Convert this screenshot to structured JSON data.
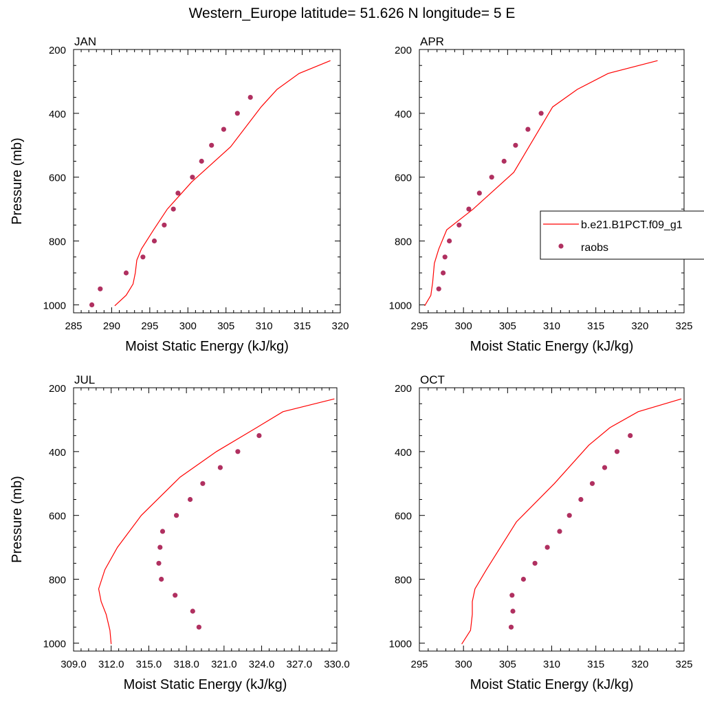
{
  "title": "Western_Europe  latitude= 51.626 N longitude= 5 E",
  "colors": {
    "model": "#ff0000",
    "obs": "#b03060"
  },
  "legend": {
    "placement": "right of APR panel, overlapping",
    "model_label": "b.e21.B1PCT.f09_g1",
    "obs_label": "raobs"
  },
  "chart_data": [
    {
      "type": "line",
      "panel_label": "JAN",
      "xlabel": "Moist Static Energy (kJ/kg)",
      "ylabel": "Pressure (mb)",
      "xlim": [
        285,
        320
      ],
      "ylim": [
        1025,
        200
      ],
      "xticks": [
        "285",
        "290",
        "295",
        "300",
        "305",
        "310",
        "315",
        "320"
      ],
      "yticks": [
        "200",
        "400",
        "600",
        "800",
        "1000"
      ],
      "series": [
        {
          "name": "b.e21.B1PCT.f09_g1",
          "kind": "line",
          "x": [
            290.4,
            291.9,
            292.8,
            293.1,
            293.3,
            293.9,
            295.5,
            297.3,
            300.5,
            305.6,
            309.6,
            311.7,
            314.6,
            318.7
          ],
          "y": [
            1003,
            970,
            935,
            900,
            860,
            825,
            765,
            700,
            615,
            505,
            380,
            325,
            275,
            235
          ]
        },
        {
          "name": "raobs",
          "kind": "scatter",
          "x": [
            287.4,
            288.5,
            291.9,
            294.1,
            295.6,
            296.9,
            298.1,
            298.7,
            300.6,
            301.8,
            303.1,
            304.7,
            306.5,
            308.2
          ],
          "y": [
            1000,
            950,
            900,
            850,
            800,
            750,
            700,
            650,
            600,
            550,
            500,
            450,
            400,
            350
          ]
        }
      ]
    },
    {
      "type": "line",
      "panel_label": "APR",
      "xlabel": "Moist Static Energy (kJ/kg)",
      "ylabel": "",
      "xlim": [
        295,
        325
      ],
      "ylim": [
        1025,
        200
      ],
      "xticks": [
        "295",
        "300",
        "305",
        "310",
        "315",
        "320",
        "325"
      ],
      "yticks": [
        "200",
        "400",
        "600",
        "800",
        "1000"
      ],
      "series": [
        {
          "name": "b.e21.B1PCT.f09_g1",
          "kind": "line",
          "x": [
            295.6,
            296.3,
            296.5,
            296.7,
            297.2,
            298.1,
            301.1,
            305.7,
            310.1,
            312.9,
            316.4,
            322.0
          ],
          "y": [
            1003,
            970,
            930,
            870,
            825,
            765,
            700,
            585,
            380,
            325,
            275,
            235
          ]
        },
        {
          "name": "raobs",
          "kind": "scatter",
          "x": [
            297.2,
            297.7,
            297.9,
            298.4,
            299.5,
            300.6,
            301.8,
            303.2,
            304.6,
            305.9,
            307.3,
            308.8
          ],
          "y": [
            950,
            900,
            850,
            800,
            750,
            700,
            650,
            600,
            550,
            500,
            450,
            400
          ]
        }
      ]
    },
    {
      "type": "line",
      "panel_label": "JUL",
      "xlabel": "Moist Static Energy (kJ/kg)",
      "ylabel": "Pressure (mb)",
      "xlim": [
        309,
        330
      ],
      "ylim": [
        1025,
        200
      ],
      "xticks": [
        "309.0",
        "312.0",
        "315.0",
        "318.0",
        "321.0",
        "324.0",
        "327.0",
        "330.0"
      ],
      "yticks": [
        "200",
        "400",
        "600",
        "800",
        "1000"
      ],
      "series": [
        {
          "name": "b.e21.B1PCT.f09_g1",
          "kind": "line",
          "x": [
            312.0,
            311.9,
            311.6,
            311.2,
            311.0,
            311.5,
            312.5,
            314.4,
            317.5,
            320.4,
            323.6,
            325.7,
            329.8
          ],
          "y": [
            1003,
            960,
            910,
            870,
            830,
            770,
            700,
            600,
            480,
            400,
            325,
            275,
            235
          ]
        },
        {
          "name": "raobs",
          "kind": "scatter",
          "x": [
            319.0,
            318.5,
            317.1,
            316.0,
            315.8,
            315.9,
            316.1,
            317.2,
            318.3,
            319.3,
            320.7,
            322.1,
            323.8
          ],
          "y": [
            950,
            900,
            850,
            800,
            750,
            700,
            650,
            600,
            550,
            500,
            450,
            400,
            350
          ]
        }
      ]
    },
    {
      "type": "line",
      "panel_label": "OCT",
      "xlabel": "Moist Static Energy (kJ/kg)",
      "ylabel": "",
      "xlim": [
        295,
        325
      ],
      "ylim": [
        1025,
        200
      ],
      "xticks": [
        "295",
        "300",
        "305",
        "310",
        "315",
        "320",
        "325"
      ],
      "yticks": [
        "200",
        "400",
        "600",
        "800",
        "1000"
      ],
      "series": [
        {
          "name": "b.e21.B1PCT.f09_g1",
          "kind": "line",
          "x": [
            299.8,
            300.8,
            301.0,
            301.0,
            301.3,
            302.6,
            306.0,
            310.3,
            314.2,
            316.6,
            319.8,
            324.7
          ],
          "y": [
            1003,
            960,
            910,
            870,
            830,
            770,
            620,
            500,
            380,
            325,
            275,
            235
          ]
        },
        {
          "name": "raobs",
          "kind": "scatter",
          "x": [
            305.4,
            305.6,
            305.5,
            306.8,
            308.1,
            309.5,
            310.9,
            312.0,
            313.3,
            314.6,
            316.0,
            317.4,
            318.9
          ],
          "y": [
            950,
            900,
            850,
            800,
            750,
            700,
            650,
            600,
            550,
            500,
            450,
            400,
            350
          ]
        }
      ]
    }
  ]
}
